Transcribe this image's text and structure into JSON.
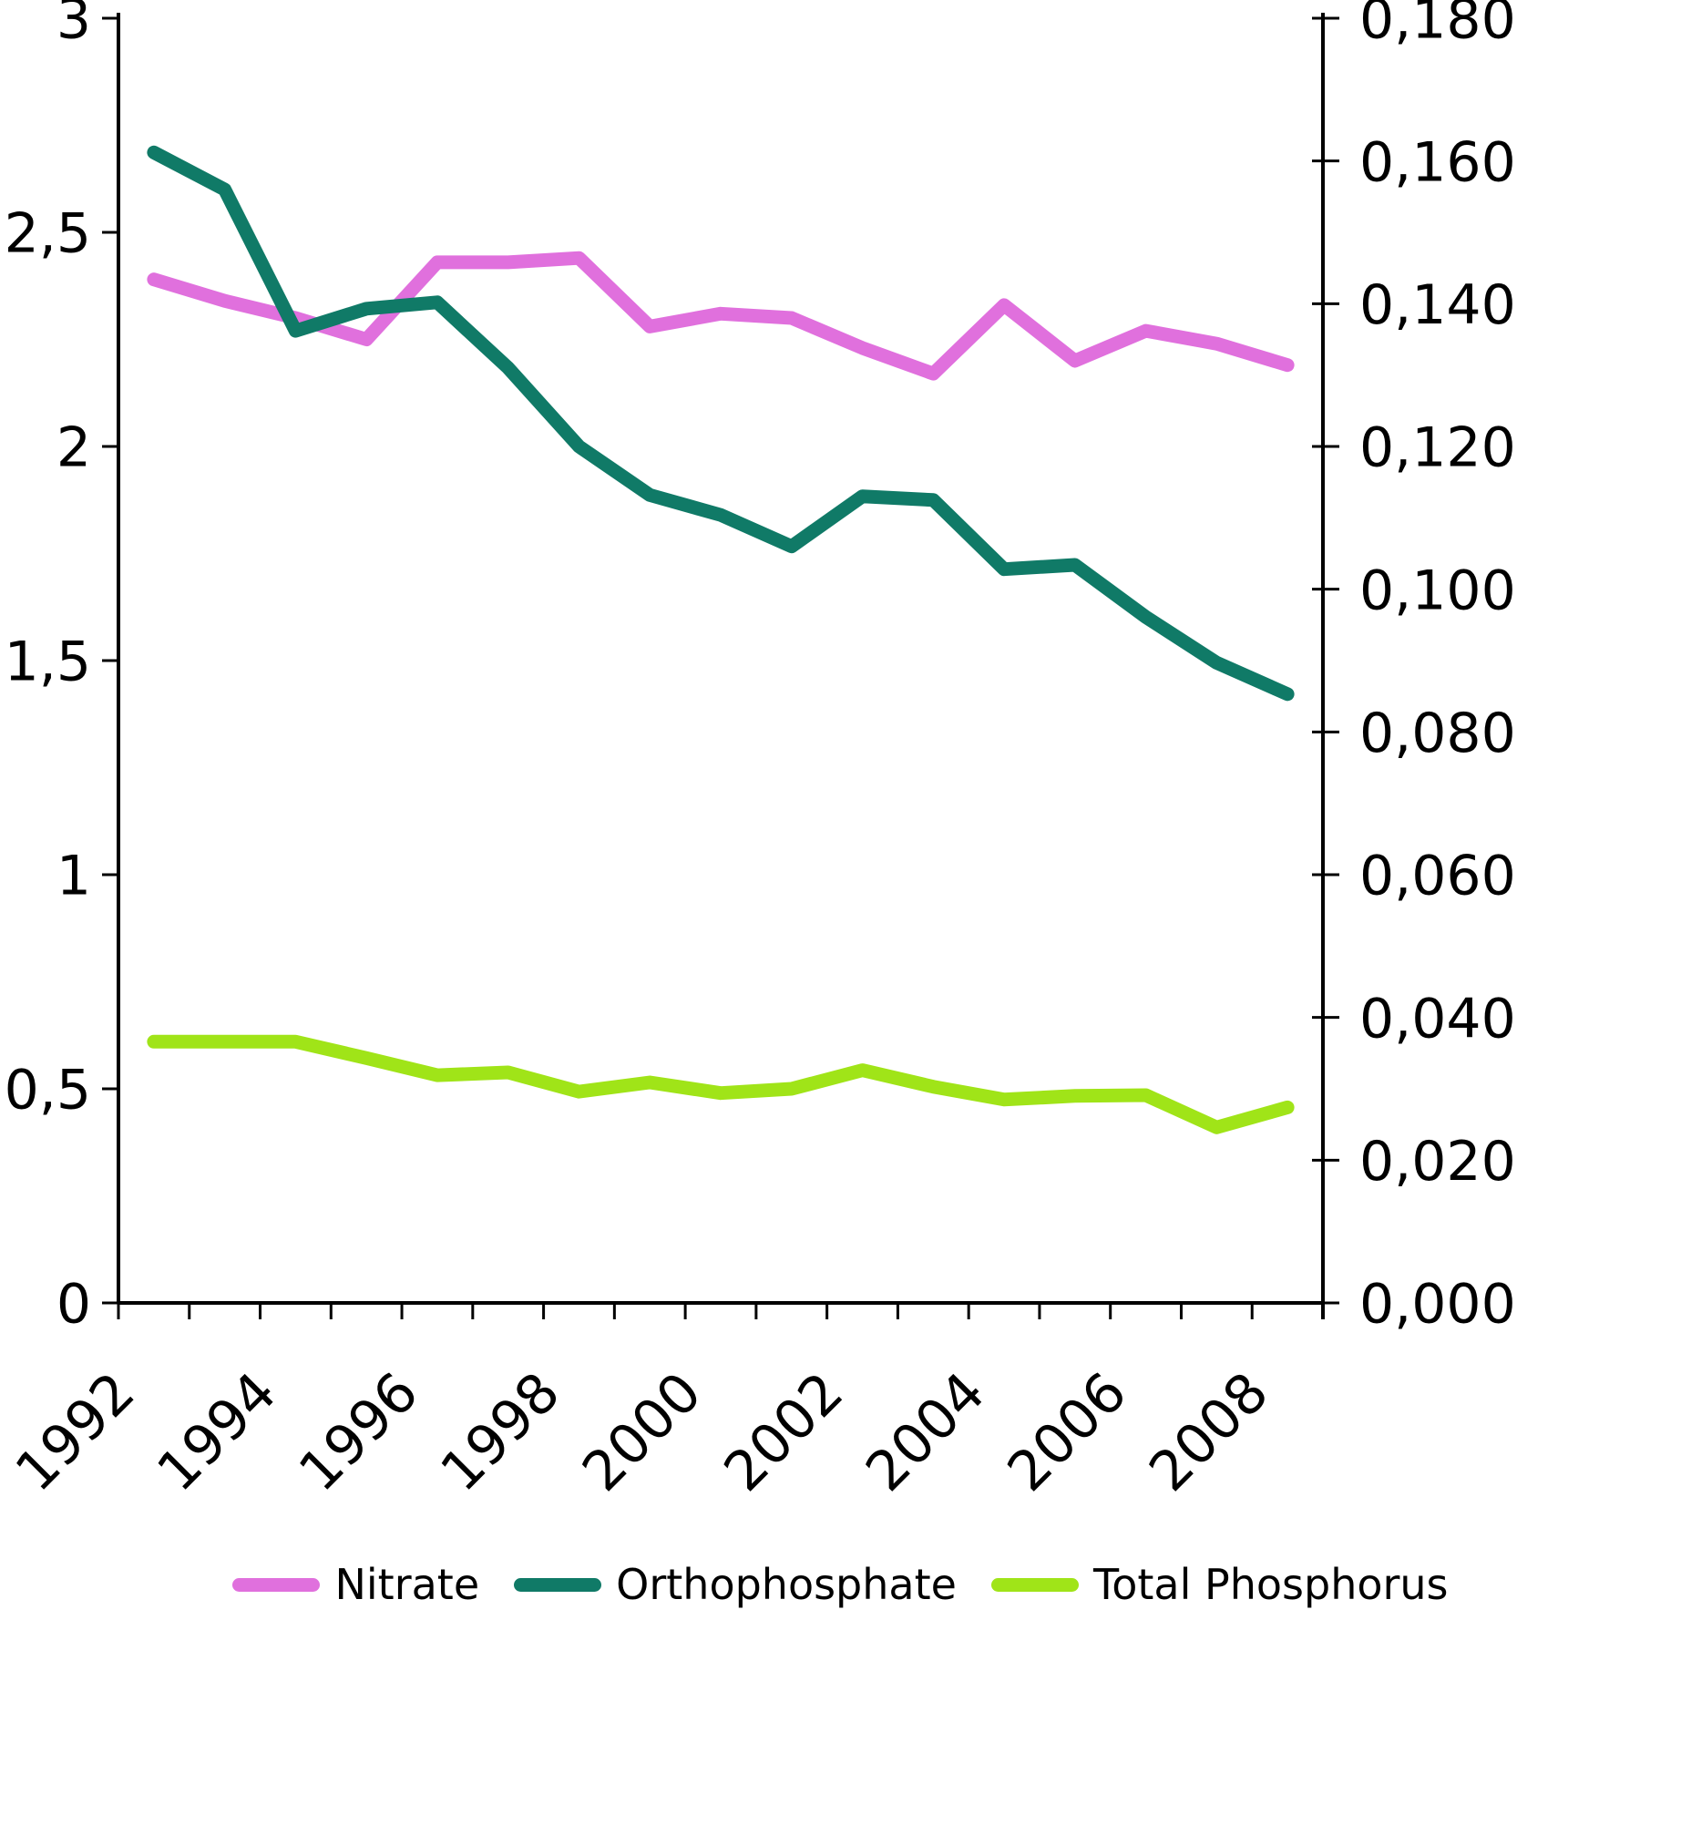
{
  "chart_data": {
    "type": "line",
    "title": "",
    "grid": false,
    "legend_position": "bottom",
    "x": {
      "categories": [
        1992,
        1993,
        1994,
        1995,
        1996,
        1997,
        1998,
        1999,
        2000,
        2001,
        2002,
        2003,
        2004,
        2005,
        2006,
        2007,
        2008
      ],
      "tick_labels": [
        "1992",
        "1994",
        "1996",
        "1998",
        "2000",
        "2002",
        "2004",
        "2006",
        "2008"
      ],
      "label_every": 2,
      "label_rotation_deg": -45
    },
    "left_axis": {
      "min": 0,
      "max": 3,
      "tick_step": 0.5,
      "tick_labels": [
        "3",
        "2,5",
        "2",
        "1,5",
        "1",
        "0,5",
        "0"
      ]
    },
    "right_axis": {
      "min": 0,
      "max": 0.18,
      "tick_step": 0.02,
      "tick_labels": [
        "0,180",
        "0,160",
        "0,140",
        "0,120",
        "0,100",
        "0,080",
        "0,060",
        "0,040",
        "0,020",
        "0,000"
      ]
    },
    "series": [
      {
        "name": "Nitrate",
        "axis": "left",
        "color": "#e070dd",
        "values": [
          2.39,
          2.34,
          2.3,
          2.25,
          2.43,
          2.43,
          2.44,
          2.28,
          2.31,
          2.3,
          2.23,
          2.17,
          2.33,
          2.2,
          2.27,
          2.24,
          2.19
        ]
      },
      {
        "name": "Orthophosphate",
        "axis": "right",
        "color": "#107a67",
        "values": [
          0.1612,
          0.156,
          0.1362,
          0.1393,
          0.1402,
          0.131,
          0.12,
          0.1132,
          0.1104,
          0.106,
          0.113,
          0.1125,
          0.1028,
          0.1034,
          0.0961,
          0.0897,
          0.0853
        ]
      },
      {
        "name": "Total Phosphorus",
        "axis": "right",
        "color": "#a0e418",
        "values": [
          0.0366,
          0.0366,
          0.0366,
          0.0343,
          0.0319,
          0.0323,
          0.0296,
          0.0309,
          0.0294,
          0.03,
          0.0326,
          0.0303,
          0.0285,
          0.029,
          0.0291,
          0.0246,
          0.0274
        ]
      }
    ]
  }
}
